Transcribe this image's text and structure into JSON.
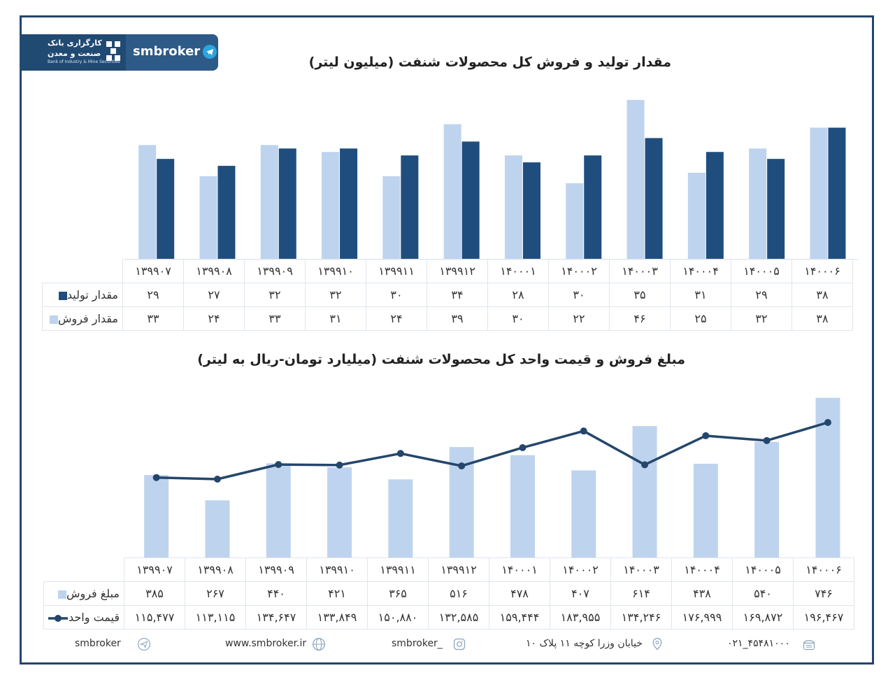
{
  "brand": {
    "name": "smbroker",
    "logo_line1": "کارگزاری بانک",
    "logo_line2": "صنعت و معدن",
    "logo_line3": "Bank of Industry & Mine Securities"
  },
  "colors": {
    "light": "#bed3ee",
    "dark": "#1f4e7e",
    "line": "#24466c",
    "frame": "#23456d"
  },
  "categories": [
    "۱۳۹۹۰۷",
    "۱۳۹۹۰۸",
    "۱۳۹۹۰۹",
    "۱۳۹۹۱۰",
    "۱۳۹۹۱۱",
    "۱۳۹۹۱۲",
    "۱۴۰۰۰۱",
    "۱۴۰۰۰۲",
    "۱۴۰۰۰۳",
    "۱۴۰۰۰۴",
    "۱۴۰۰۰۵",
    "۱۴۰۰۰۶"
  ],
  "chart_data": [
    {
      "type": "bar",
      "title": "مقدار تولید و فروش کل محصولات شنفت (میلیون لیتر)",
      "series": [
        {
          "name": "مقدار فروش",
          "values": [
            33,
            24,
            33,
            31,
            24,
            39,
            30,
            22,
            46,
            25,
            32,
            38
          ],
          "labels": [
            "۳۳",
            "۲۴",
            "۳۳",
            "۳۱",
            "۲۴",
            "۳۹",
            "۳۰",
            "۲۲",
            "۴۶",
            "۲۵",
            "۳۲",
            "۳۸"
          ]
        },
        {
          "name": "مقدار تولید",
          "values": [
            29,
            27,
            32,
            32,
            30,
            34,
            28,
            30,
            35,
            31,
            29,
            38
          ],
          "labels": [
            "۲۹",
            "۲۷",
            "۳۲",
            "۳۲",
            "۳۰",
            "۳۴",
            "۲۸",
            "۳۰",
            "۳۵",
            "۳۱",
            "۲۹",
            "۳۸"
          ]
        }
      ]
    },
    {
      "type": "bar+line",
      "title": "مبلغ فروش و قیمت واحد کل محصولات شنفت (میلیارد تومان-ریال به لیتر)",
      "series": [
        {
          "name": "مبلغ فروش",
          "type": "bar",
          "values": [
            385,
            267,
            440,
            421,
            365,
            516,
            478,
            407,
            614,
            438,
            540,
            746
          ],
          "labels": [
            "۳۸۵",
            "۲۶۷",
            "۴۴۰",
            "۴۲۱",
            "۳۶۵",
            "۵۱۶",
            "۴۷۸",
            "۴۰۷",
            "۶۱۴",
            "۴۳۸",
            "۵۴۰",
            "۷۴۶"
          ]
        },
        {
          "name": "قیمت واحد",
          "type": "line",
          "values": [
            115477,
            113115,
            134647,
            133849,
            150880,
            132585,
            159444,
            183955,
            134246,
            176999,
            169872,
            196467
          ],
          "labels": [
            "۱۱۵,۴۷۷",
            "۱۱۳,۱۱۵",
            "۱۳۴,۶۴۷",
            "۱۳۳,۸۴۹",
            "۱۵۰,۸۸۰",
            "۱۳۲,۵۸۵",
            "۱۵۹,۴۴۴",
            "۱۸۳,۹۵۵",
            "۱۳۴,۲۴۶",
            "۱۷۶,۹۹۹",
            "۱۶۹,۸۷۲",
            "۱۹۶,۴۶۷"
          ]
        }
      ]
    }
  ],
  "footer": {
    "twitter": "smbroker",
    "website": "www.smbroker.ir",
    "instagram": "smbroker_",
    "address": "خیابان وزرا کوچه ۱۱ پلاک ۱۰",
    "phone": "۰۲۱_۴۵۴۸۱۰۰۰"
  }
}
